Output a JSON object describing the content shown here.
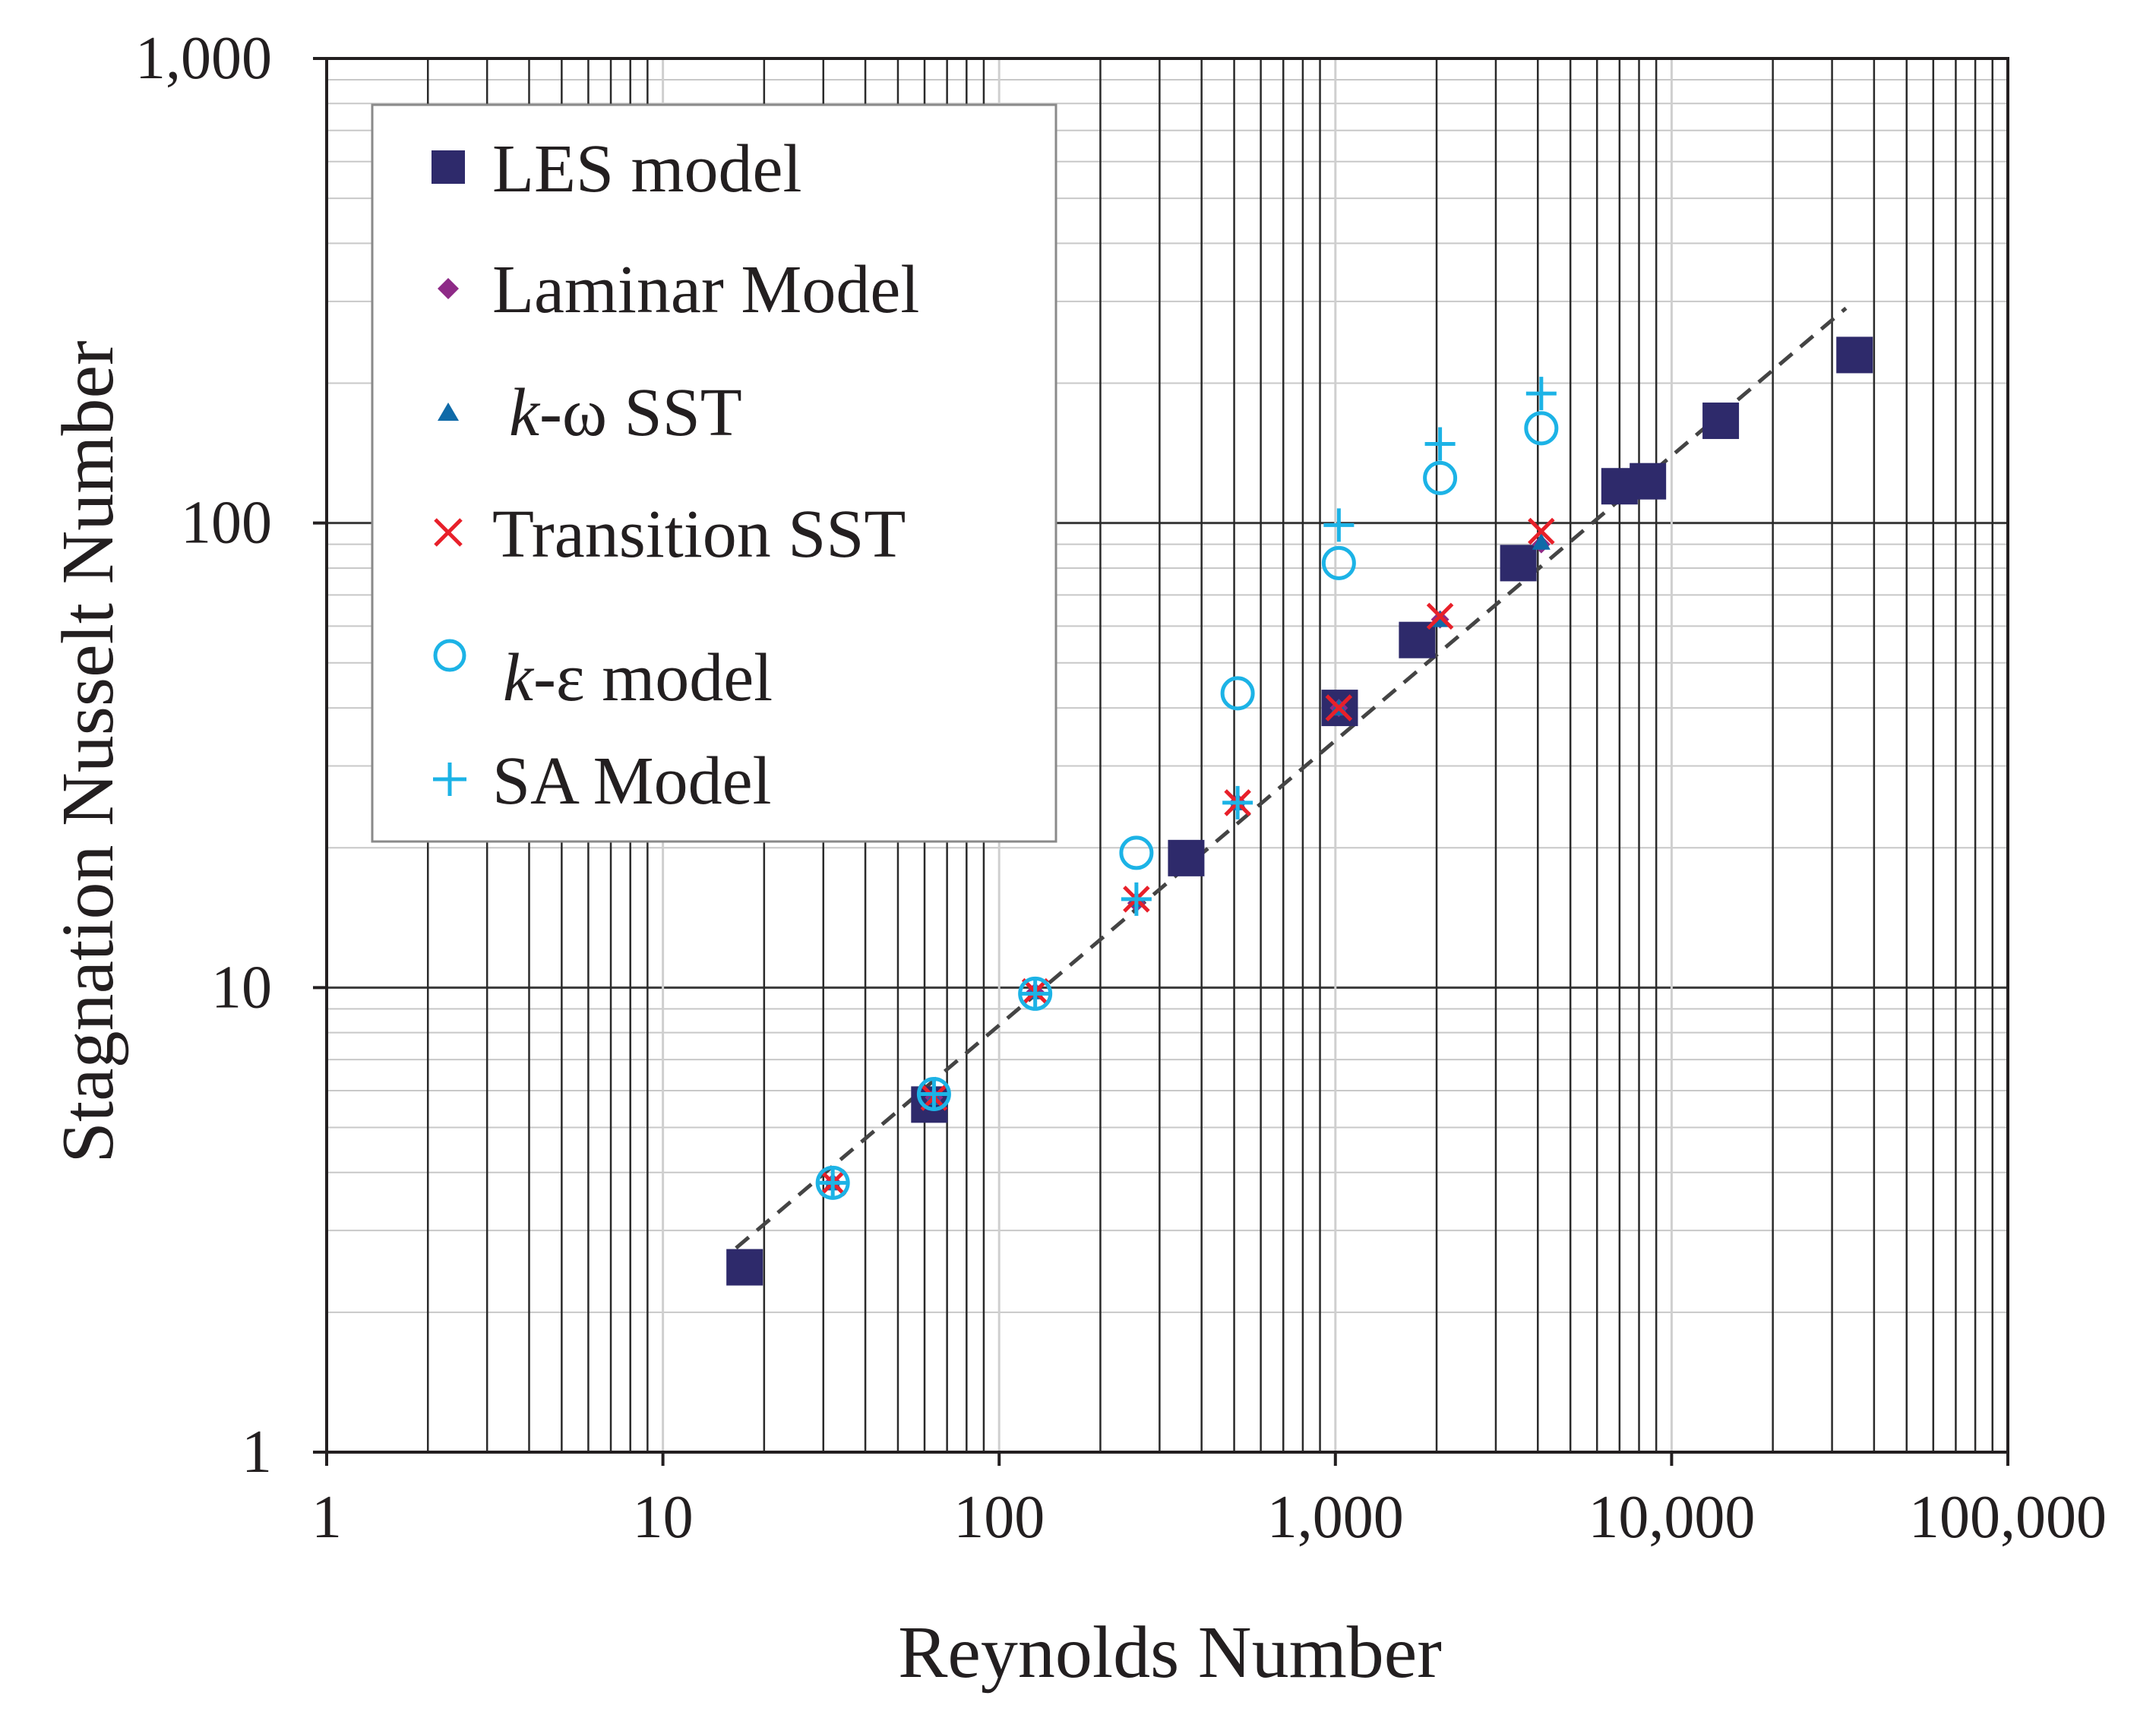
{
  "chart_data": {
    "type": "scatter",
    "scale": "log-log",
    "title": "",
    "xlabel": "Reynolds Number",
    "ylabel": "Stagnation Nusselt Number",
    "xlim": [
      1,
      100000
    ],
    "ylim": [
      1,
      1000
    ],
    "x_ticks": [
      {
        "value": 1,
        "label": "1"
      },
      {
        "value": 10,
        "label": "10"
      },
      {
        "value": 100,
        "label": "100"
      },
      {
        "value": 1000,
        "label": "1,000"
      },
      {
        "value": 10000,
        "label": "10,000"
      },
      {
        "value": 100000,
        "label": "100,000"
      }
    ],
    "y_ticks": [
      {
        "value": 1,
        "label": "1"
      },
      {
        "value": 10,
        "label": "10"
      },
      {
        "value": 100,
        "label": "100"
      },
      {
        "value": 1000,
        "label": "1,000"
      }
    ],
    "grid": true,
    "legend_position": "top-left",
    "series": [
      {
        "name": "LES model",
        "marker": "square",
        "color": "#2e2a6b",
        "x": [
          17.5,
          62,
          360,
          1030,
          1750,
          3500,
          7000,
          8500,
          14000,
          35000
        ],
        "y": [
          2.5,
          5.6,
          19,
          40,
          56,
          82,
          120,
          123,
          166,
          230
        ]
      },
      {
        "name": "Laminar Model",
        "marker": "diamond",
        "color": "#8e2a87",
        "x": [
          32,
          64,
          128,
          256,
          512,
          1024,
          2048,
          4096
        ],
        "y": [
          3.8,
          5.8,
          9.8,
          15.2,
          25,
          40,
          62,
          90
        ]
      },
      {
        "name": "k-ω SST",
        "marker": "triangle",
        "color": "#0f6aa8",
        "x": [
          32,
          64,
          128,
          256,
          512,
          1024,
          2048,
          4096
        ],
        "y": [
          3.8,
          5.8,
          9.8,
          15.5,
          25,
          40,
          62,
          91
        ]
      },
      {
        "name": "Transition SST",
        "marker": "x",
        "color": "#e8202a",
        "x": [
          32,
          64,
          128,
          256,
          512,
          1024,
          2048,
          4096
        ],
        "y": [
          3.8,
          5.8,
          9.8,
          15.5,
          25,
          40,
          63,
          96
        ]
      },
      {
        "name": "k-ε model",
        "marker": "circle",
        "color": "#1cb3e6",
        "x": [
          32,
          64,
          128,
          256,
          512,
          1024,
          2048,
          4096
        ],
        "y": [
          3.8,
          5.9,
          9.7,
          19.5,
          43,
          82,
          125,
          160
        ]
      },
      {
        "name": "SA Model",
        "marker": "plus",
        "color": "#1cb3e6",
        "x": [
          32,
          64,
          128,
          256,
          512,
          1024,
          2048,
          4096
        ],
        "y": [
          3.8,
          5.9,
          9.7,
          15.5,
          25,
          99,
          148,
          190
        ]
      }
    ],
    "fit_line": {
      "name": "trend",
      "style": "dashed",
      "color": "#444444",
      "x": [
        16.5,
        33000
      ],
      "y": [
        2.75,
        290
      ]
    },
    "legend_labels": {
      "les": "LES model",
      "laminar": "Laminar Model",
      "kw_k": "k",
      "kw_rest": "-ω SST",
      "transition": "Transition SST",
      "ke_k": "k",
      "ke_rest": "-ε model",
      "sa": "SA Model"
    }
  }
}
